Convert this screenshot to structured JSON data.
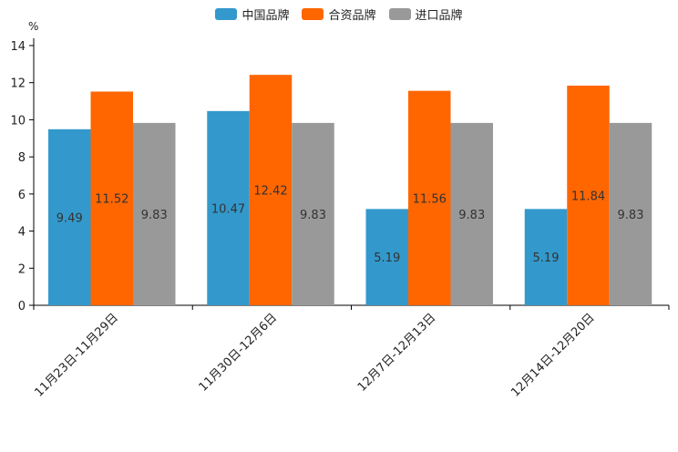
{
  "chart_data": {
    "type": "bar",
    "ylabel": "%",
    "ylim": [
      0,
      14
    ],
    "yticks": [
      0,
      2,
      4,
      6,
      8,
      10,
      12,
      14
    ],
    "categories": [
      "11月23日-11月29日",
      "11月30日-12月6日",
      "12月7日-12月13日",
      "12月14日-12月20日"
    ],
    "series": [
      {
        "name": "中国品牌",
        "color": "#3399cc",
        "values": [
          9.49,
          10.47,
          5.19,
          5.19
        ]
      },
      {
        "name": "合资品牌",
        "color": "#ff6600",
        "values": [
          11.52,
          12.42,
          11.56,
          11.84
        ]
      },
      {
        "name": "进口品牌",
        "color": "#999999",
        "values": [
          9.83,
          9.83,
          9.83,
          9.83
        ]
      }
    ],
    "legend_position": "top-center"
  }
}
